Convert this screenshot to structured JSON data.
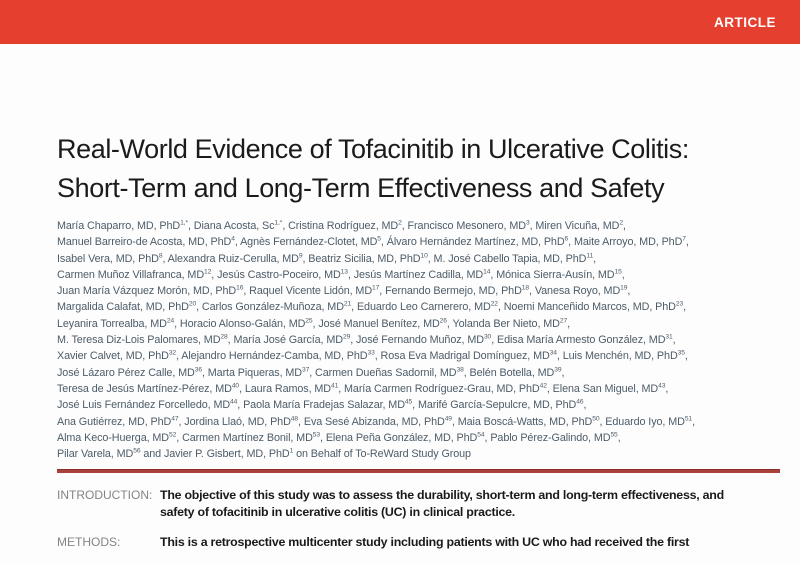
{
  "banner": {
    "label": "ARTICLE",
    "color": "#E5402F"
  },
  "article": {
    "title_lines": [
      "Real-World Evidence of Tofacinitib in Ulcerative Colitis:",
      "Short-Term and Long-Term Effectiveness and Safety"
    ],
    "author_lines": [
      "María Chaparro, MD, PhD^{1,*}, Diana Acosta, Sc^{1,*}, Cristina Rodríguez, MD^{2}, Francisco Mesonero, MD^{3}, Miren Vicuña, MD^{2},",
      "Manuel Barreiro-de Acosta, MD, PhD^{4}, Agnès Fernández-Clotet, MD^{5}, Álvaro Hernández Martínez, MD, PhD^{6}, Maite Arroyo, MD, PhD^{7},",
      "Isabel Vera, MD, PhD^{8}, Alexandra Ruiz-Cerulla, MD^{9}, Beatriz Sicilia, MD, PhD^{10}, M. José Cabello Tapia, MD, PhD^{11},",
      "Carmen Muñoz Villafranca, MD^{12}, Jesús Castro-Poceiro, MD^{13}, Jesús Martínez Cadilla, MD^{14}, Mónica Sierra-Ausín, MD^{15},",
      "Juan María Vázquez Morón, MD, PhD^{16}, Raquel Vicente Lidón, MD^{17}, Fernando Bermejo, MD, PhD^{18}, Vanesa Royo, MD^{19},",
      "Margalida Calafat, MD, PhD^{20}, Carlos González-Muñoza, MD^{21}, Eduardo Leo Carnerero, MD^{22}, Noemi Manceñido Marcos, MD, PhD^{23},",
      "Leyanira Torrealba, MD^{24}, Horacio Alonso-Galán, MD^{25}, José Manuel Benítez, MD^{26}, Yolanda Ber Nieto, MD^{27},",
      "M. Teresa Diz-Lois Palomares, MD^{28}, María José García, MD^{29}, José Fernando Muñoz, MD^{30}, Edisa María Armesto González, MD^{31},",
      "Xavier Calvet, MD, PhD^{32}, Alejandro Hernández-Camba, MD, PhD^{33}, Rosa Eva Madrigal Domínguez, MD^{34}, Luis Menchén, MD, PhD^{35},",
      "José Lázaro Pérez Calle, MD^{36}, Marta Piqueras, MD^{37}, Carmen Dueñas Sadornil, MD^{38}, Belén Botella, MD^{39},",
      "Teresa de Jesús Martínez-Pérez, MD^{40}, Laura Ramos, MD^{41}, María Carmen Rodríguez-Grau, MD, PhD^{42}, Elena San Miguel, MD^{43},",
      "José Luis Fernández Forcelledo, MD^{44}, Paola María Fradejas Salazar, MD^{45}, Marifé García-Sepulcre, MD, PhD^{46},",
      "Ana Gutiérrez, MD, PhD^{47}, Jordina Llaó, MD, PhD^{48}, Eva Sesé Abizanda, MD, PhD^{49}, Maia Boscá-Watts, MD, PhD^{50}, Eduardo Iyo, MD^{51},",
      "Alma Keco-Huerga, MD^{52}, Carmen Martínez Bonil, MD^{53}, Elena Peña González, MD, PhD^{54}, Pablo Pérez-Galindo, MD^{55},",
      "Pilar Varela, MD^{56} and Javier P. Gisbert, MD, PhD^{1} on Behalf of To-ReWard Study Group"
    ]
  },
  "abstract": {
    "sections": [
      {
        "label": "INTRODUCTION:",
        "lines": [
          "The objective of this study was to assess the durability, short-term and long-term effectiveness, and",
          "safety of tofacitinib in ulcerative colitis (UC) in clinical practice."
        ]
      },
      {
        "label": "METHODS:",
        "lines": [
          "This is a retrospective multicenter study including patients with UC who had received the first"
        ]
      }
    ]
  },
  "colors": {
    "banner_red": "#E5402F",
    "rule_red": "#A9423C",
    "author_text": "#4D5C68"
  }
}
